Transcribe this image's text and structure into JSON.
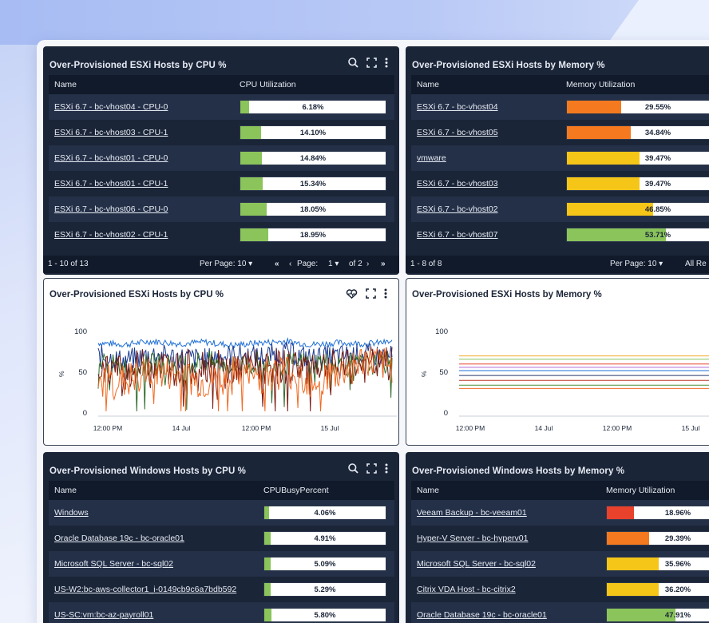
{
  "colors": {
    "panel_dark": "#1b2538",
    "bar_green": "#8ac45b",
    "bar_orange": "#f57a1f",
    "bar_yellow": "#f5c518",
    "bar_red": "#e8412c"
  },
  "icons": [
    "search-icon",
    "expand-icon",
    "more-vertical-icon",
    "heart-rate-icon"
  ],
  "panel1": {
    "title": "Over-Provisioned ESXi Hosts by CPU %",
    "col_name": "Name",
    "col_metric": "CPU Utilization",
    "rows": [
      {
        "name": "ESXi 6.7 - bc-vhost04 - CPU-0",
        "value": 6.18,
        "label": "6.18%",
        "color": "#8ac45b"
      },
      {
        "name": "ESXi 6.7 - bc-vhost03 - CPU-1",
        "value": 14.1,
        "label": "14.10%",
        "color": "#8ac45b"
      },
      {
        "name": "ESXi 6.7 - bc-vhost01 - CPU-0",
        "value": 14.84,
        "label": "14.84%",
        "color": "#8ac45b"
      },
      {
        "name": "ESXi 6.7 - bc-vhost01 - CPU-1",
        "value": 15.34,
        "label": "15.34%",
        "color": "#8ac45b"
      },
      {
        "name": "ESXi 6.7 - bc-vhost06 - CPU-0",
        "value": 18.05,
        "label": "18.05%",
        "color": "#8ac45b"
      },
      {
        "name": "ESXi 6.7 - bc-vhost02 - CPU-1",
        "value": 18.95,
        "label": "18.95%",
        "color": "#8ac45b"
      }
    ],
    "pager": {
      "range": "1 - 10 of 13",
      "per_page": "Per Page: 10",
      "page_label": "Page:",
      "page": "1",
      "of": "of 2"
    }
  },
  "panel2": {
    "title": "Over-Provisioned ESXi Hosts by Memory %",
    "col_name": "Name",
    "col_metric": "Memory Utilization",
    "rows": [
      {
        "name": "ESXi 6.7 - bc-vhost04",
        "value": 29.55,
        "label": "29.55%",
        "color": "#f57a1f"
      },
      {
        "name": "ESXi 6.7 - bc-vhost05",
        "value": 34.84,
        "label": "34.84%",
        "color": "#f57a1f"
      },
      {
        "name": "vmware",
        "value": 39.47,
        "label": "39.47%",
        "color": "#f5c518"
      },
      {
        "name": "ESXi 6.7 - bc-vhost03",
        "value": 39.47,
        "label": "39.47%",
        "color": "#f5c518"
      },
      {
        "name": "ESXi 6.7 - bc-vhost02",
        "value": 46.85,
        "label": "46.85%",
        "color": "#f5c518"
      },
      {
        "name": "ESXi 6.7 - bc-vhost07",
        "value": 53.71,
        "label": "53.71%",
        "color": "#8ac45b"
      }
    ],
    "pager": {
      "range": "1 - 8 of 8",
      "per_page": "Per Page: 10",
      "all": "All Re"
    }
  },
  "panel3": {
    "title": "Over-Provisioned ESXi Hosts by CPU %"
  },
  "panel4": {
    "title": "Over-Provisioned ESXi Hosts by Memory %"
  },
  "panel5": {
    "title": "Over-Provisioned Windows Hosts by CPU %",
    "col_name": "Name",
    "col_metric": "CPUBusyPercent",
    "rows": [
      {
        "name": "Windows",
        "value": 4.06,
        "label": "4.06%",
        "color": "#8ac45b"
      },
      {
        "name": "Oracle Database 19c - bc-oracle01",
        "value": 4.91,
        "label": "4.91%",
        "color": "#8ac45b"
      },
      {
        "name": "Microsoft SQL Server - bc-sql02",
        "value": 5.09,
        "label": "5.09%",
        "color": "#8ac45b"
      },
      {
        "name": "US-W2:bc-aws-collector1_i-0149cb9c6a7bdb592",
        "value": 5.29,
        "label": "5.29%",
        "color": "#8ac45b"
      },
      {
        "name": "US-SC:vm:bc-az-payroll01",
        "value": 5.8,
        "label": "5.80%",
        "color": "#8ac45b"
      }
    ]
  },
  "panel6": {
    "title": "Over-Provisioned Windows Hosts by Memory %",
    "col_name": "Name",
    "col_metric": "Memory Utilization",
    "rows": [
      {
        "name": "Veeam Backup - bc-veeam01",
        "value": 18.96,
        "label": "18.96%",
        "color": "#e8412c"
      },
      {
        "name": "Hyper-V Server - bc-hyperv01",
        "value": 29.39,
        "label": "29.39%",
        "color": "#f57a1f"
      },
      {
        "name": "Microsoft SQL Server - bc-sql02",
        "value": 35.96,
        "label": "35.96%",
        "color": "#f5c518"
      },
      {
        "name": "Citrix VDA Host - bc-citrix2",
        "value": 36.2,
        "label": "36.20%",
        "color": "#f5c518"
      },
      {
        "name": "Oracle Database 19c - bc-oracle01",
        "value": 47.91,
        "label": "47.91%",
        "color": "#8ac45b"
      }
    ]
  },
  "chart_data": [
    {
      "type": "line",
      "ylabel": "%",
      "ylim": [
        0,
        100
      ],
      "yticks": [
        "0",
        "50",
        "100"
      ],
      "xticks": [
        "12:00 PM",
        "14 Jul",
        "12:00 PM",
        "15 Jul"
      ],
      "grid": false,
      "series": [
        {
          "color": "#1f6fd6",
          "values": [
            86,
            84,
            88,
            85,
            87,
            83,
            86,
            88,
            84,
            86,
            85,
            87
          ]
        },
        {
          "color": "#1b3b8f",
          "values": [
            70,
            64,
            72,
            68,
            66,
            71,
            69,
            74,
            67,
            70,
            72,
            69
          ]
        },
        {
          "color": "#2f6b2a",
          "values": [
            62,
            55,
            60,
            58,
            64,
            57,
            61,
            59,
            63,
            60,
            58,
            62
          ]
        },
        {
          "color": "#7a1a12",
          "values": [
            58,
            50,
            62,
            54,
            60,
            52,
            59,
            56,
            61,
            55,
            57,
            60
          ]
        },
        {
          "color": "#f06a23",
          "values": [
            42,
            38,
            50,
            45,
            36,
            48,
            44,
            52,
            40,
            47,
            65,
            55
          ]
        }
      ]
    },
    {
      "type": "line",
      "ylabel": "%",
      "ylim": [
        0,
        100
      ],
      "yticks": [
        "0",
        "50",
        "100"
      ],
      "xticks": [
        "12:00 PM",
        "14 Jul",
        "12:00 PM",
        "15 Jul"
      ],
      "grid": false,
      "series": [
        {
          "color": "#f5a623",
          "values": [
            70,
            70,
            70,
            70,
            70,
            70
          ]
        },
        {
          "color": "#8ac45b",
          "values": [
            66,
            66,
            66,
            66,
            66,
            66
          ]
        },
        {
          "color": "#e8412c",
          "values": [
            60,
            60,
            60,
            60,
            60,
            60
          ]
        },
        {
          "color": "#b06bd6",
          "values": [
            56,
            56,
            56,
            56,
            56,
            56
          ]
        },
        {
          "color": "#1f6fd6",
          "values": [
            52,
            52,
            52,
            52,
            52,
            52
          ]
        },
        {
          "color": "#2a3a6e",
          "values": [
            46,
            46,
            46,
            46,
            46,
            46
          ]
        },
        {
          "color": "#c0392b",
          "values": [
            40,
            40,
            40,
            40,
            40,
            40
          ]
        },
        {
          "color": "#4b8f3a",
          "values": [
            34,
            34,
            34,
            34,
            34,
            34
          ]
        },
        {
          "color": "#f06a23",
          "values": [
            30,
            30,
            30,
            30,
            30,
            30
          ]
        }
      ]
    }
  ]
}
